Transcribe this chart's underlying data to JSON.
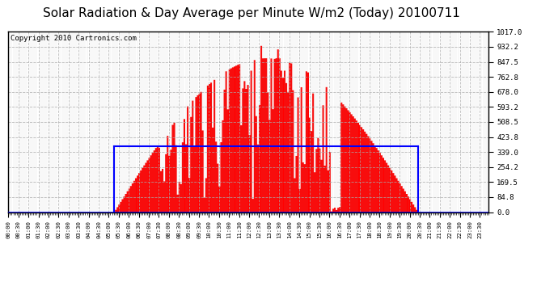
{
  "title": "Solar Radiation & Day Average per Minute W/m2 (Today) 20100711",
  "copyright": "Copyright 2010 Cartronics.com",
  "bg_color": "#ffffff",
  "plot_bg_color": "#ffffff",
  "fill_color": "#ff0000",
  "line_color": "#0000ff",
  "grid_color": "#aaaaaa",
  "title_fontsize": 11,
  "copyright_fontsize": 6.5,
  "ymin": 0.0,
  "ymax": 1017.0,
  "yticks": [
    0.0,
    84.8,
    169.5,
    254.2,
    339.0,
    423.8,
    508.5,
    593.2,
    678.0,
    762.8,
    847.5,
    932.2,
    1017.0
  ],
  "day_avg_value": 370.0,
  "sunrise_minute": 315,
  "sunset_minute": 1225,
  "solar_noon": 750
}
